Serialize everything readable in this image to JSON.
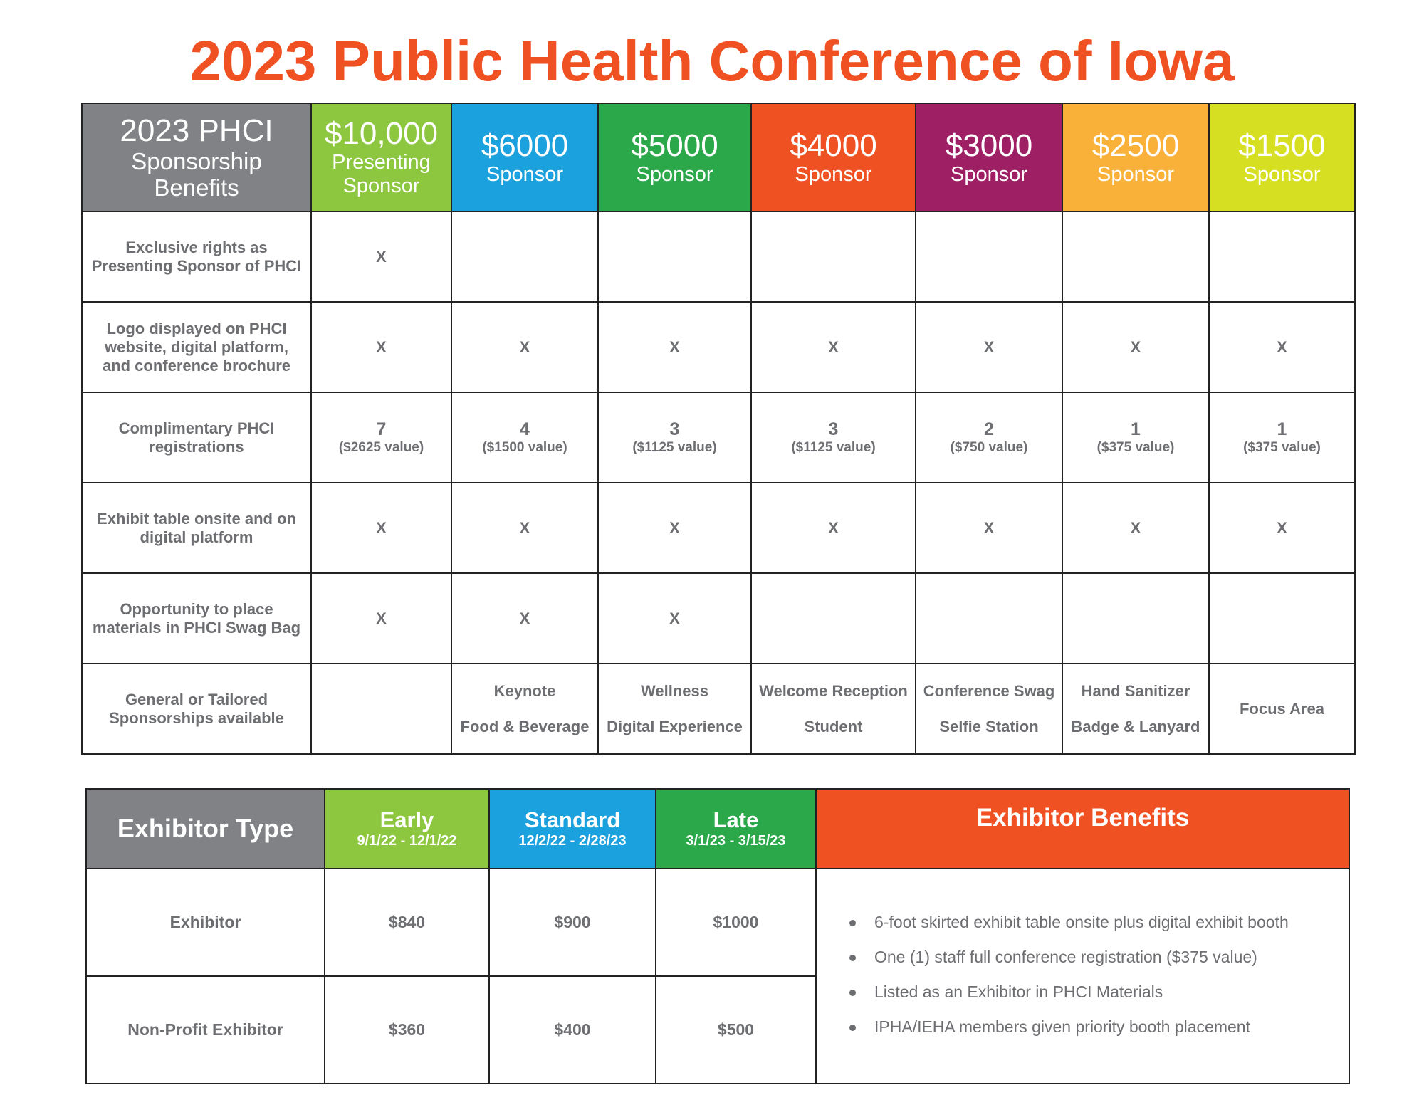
{
  "page_title": "2023 Public Health Conference of Iowa",
  "sponsorship": {
    "corner_line1": "2023 PHCI",
    "corner_line2": "Sponsorship",
    "corner_line3": "Benefits",
    "tiers": [
      {
        "amount": "$10,000",
        "label_line1": "Presenting",
        "label_line2": "Sponsor",
        "color": "#8dc63f"
      },
      {
        "amount": "$6000",
        "label_line1": "Sponsor",
        "label_line2": "",
        "color": "#1ba1dd"
      },
      {
        "amount": "$5000",
        "label_line1": "Sponsor",
        "label_line2": "",
        "color": "#2aa84a"
      },
      {
        "amount": "$4000",
        "label_line1": "Sponsor",
        "label_line2": "",
        "color": "#f05123"
      },
      {
        "amount": "$3000",
        "label_line1": "Sponsor",
        "label_line2": "",
        "color": "#9e1f63"
      },
      {
        "amount": "$2500",
        "label_line1": "Sponsor",
        "label_line2": "",
        "color": "#f9b13a"
      },
      {
        "amount": "$1500",
        "label_line1": "Sponsor",
        "label_line2": "",
        "color": "#d7df23"
      }
    ],
    "rows": [
      {
        "label_line1": "Exclusive rights as",
        "label_line2": "Presenting Sponsor of PHCI",
        "label_line3": "",
        "cells": [
          "X",
          "",
          "",
          "",
          "",
          "",
          ""
        ]
      },
      {
        "label_line1": "Logo displayed on PHCI",
        "label_line2": "website, digital platform,",
        "label_line3": "and conference brochure",
        "cells": [
          "X",
          "X",
          "X",
          "X",
          "X",
          "X",
          "X"
        ]
      },
      {
        "label_line1": "Complimentary PHCI",
        "label_line2": "registrations",
        "label_line3": "",
        "cells": [
          {
            "count": "7",
            "value": "($2625 value)"
          },
          {
            "count": "4",
            "value": "($1500 value)"
          },
          {
            "count": "3",
            "value": "($1125 value)"
          },
          {
            "count": "3",
            "value": "($1125 value)"
          },
          {
            "count": "2",
            "value": "($750 value)"
          },
          {
            "count": "1",
            "value": "($375 value)"
          },
          {
            "count": "1",
            "value": "($375 value)"
          }
        ]
      },
      {
        "label_line1": "Exhibit table onsite and on",
        "label_line2": "digital platform",
        "label_line3": "",
        "cells": [
          "X",
          "X",
          "X",
          "X",
          "X",
          "X",
          "X"
        ]
      },
      {
        "label_line1": "Opportunity to place",
        "label_line2": "materials in PHCI Swag Bag",
        "label_line3": "",
        "cells": [
          "X",
          "X",
          "X",
          "",
          "",
          "",
          ""
        ]
      },
      {
        "label_line1": "General or Tailored",
        "label_line2": "Sponsorships available",
        "label_line3": "",
        "cells": [
          {
            "line1": "",
            "line2": ""
          },
          {
            "line1": "Keynote",
            "line2": "Food & Beverage"
          },
          {
            "line1": "Wellness",
            "line2": "Digital Experience"
          },
          {
            "line1": "Welcome Reception",
            "line2": "Student"
          },
          {
            "line1": "Conference Swag",
            "line2": "Selfie Station"
          },
          {
            "line1": "Hand Sanitizer",
            "line2": "Badge & Lanyard"
          },
          {
            "line1": "Focus Area",
            "line2": ""
          }
        ]
      }
    ]
  },
  "exhibitor": {
    "type_header": "Exhibitor Type",
    "periods": [
      {
        "name": "Early",
        "dates": "9/1/22 - 12/1/22",
        "color": "#8dc63f"
      },
      {
        "name": "Standard",
        "dates": "12/2/22 - 2/28/23",
        "color": "#1ba1dd"
      },
      {
        "name": "Late",
        "dates": "3/1/23 - 3/15/23",
        "color": "#2aa84a"
      }
    ],
    "benefits_header": "Exhibitor Benefits",
    "rows": [
      {
        "type": "Exhibitor",
        "prices": [
          "$840",
          "$900",
          "$1000"
        ]
      },
      {
        "type": "Non-Profit Exhibitor",
        "prices": [
          "$360",
          "$400",
          "$500"
        ]
      }
    ],
    "benefits": [
      "6-foot skirted exhibit table onsite plus digital exhibit booth",
      "One (1) staff full conference registration ($375 value)",
      "Listed as an Exhibitor in PHCI Materials",
      "IPHA/IEHA members given priority booth placement"
    ]
  }
}
